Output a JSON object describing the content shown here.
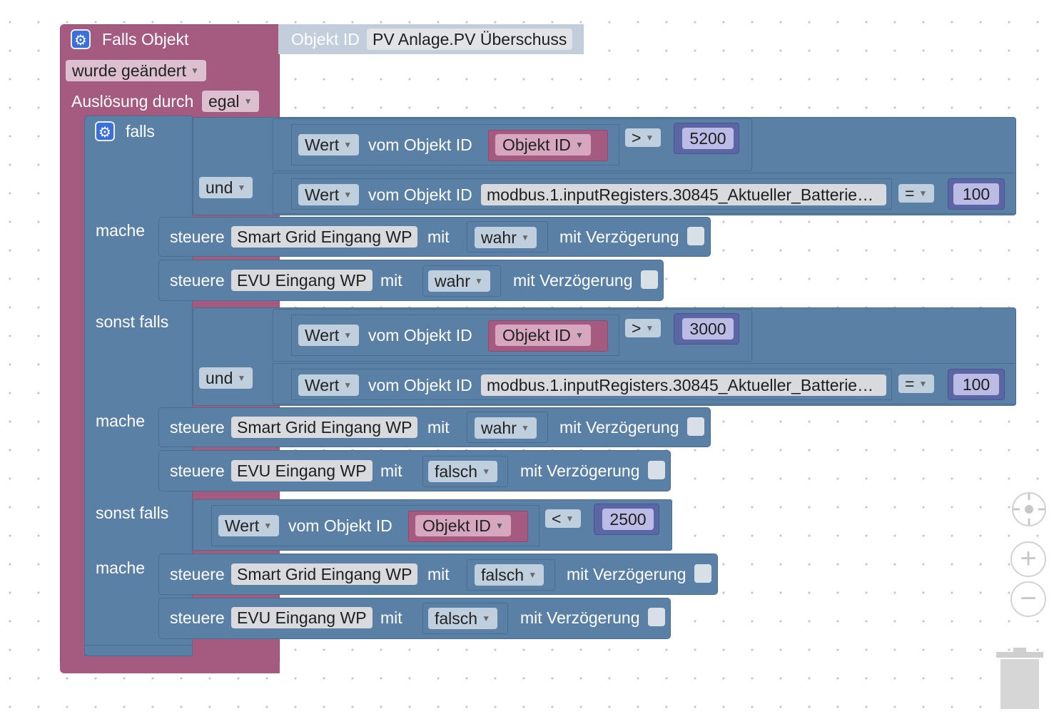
{
  "trigger": {
    "title": "Falls Objekt",
    "object_id_label": "Objekt ID",
    "object_id_value": "PV Anlage.PV Überschuss",
    "change_option": "wurde geändert",
    "trigger_label": "Auslösung durch",
    "trigger_value": "egal"
  },
  "ifblock": {
    "falls_label": "falls",
    "else_if_label": "sonst falls",
    "do_label": "mache",
    "and_label": "und"
  },
  "common": {
    "value_label": "Wert",
    "from_object_label": "vom Objekt ID",
    "object_id_placeholder": "Objekt ID",
    "modbus_id": "modbus.1.inputRegisters.30845_Aktueller_Batterie…",
    "control_label": "steuere",
    "with_label": "mit",
    "delay_label": "mit Verzögerung",
    "sg_target": "Smart Grid Eingang WP",
    "evu_target": "EVU Eingang WP"
  },
  "conditions": [
    {
      "op": ">",
      "threshold": "5200",
      "eq_op": "=",
      "eq_value": "100"
    },
    {
      "op": ">",
      "threshold": "3000",
      "eq_op": "=",
      "eq_value": "100"
    },
    {
      "op": "<",
      "threshold": "2500"
    }
  ],
  "actions": [
    {
      "sg_value": "wahr",
      "evu_value": "wahr"
    },
    {
      "sg_value": "wahr",
      "evu_value": "falsch"
    },
    {
      "sg_value": "falsch",
      "evu_value": "falsch"
    }
  ],
  "colors": {
    "event_block": "#a55b80",
    "logic_block": "#5b80a5",
    "math_block": "#5b67a5",
    "gear_icon": "#3b6fdc"
  },
  "icons": [
    "gear-icon",
    "target-icon",
    "zoom-in-icon",
    "zoom-out-icon",
    "trash-icon"
  ]
}
